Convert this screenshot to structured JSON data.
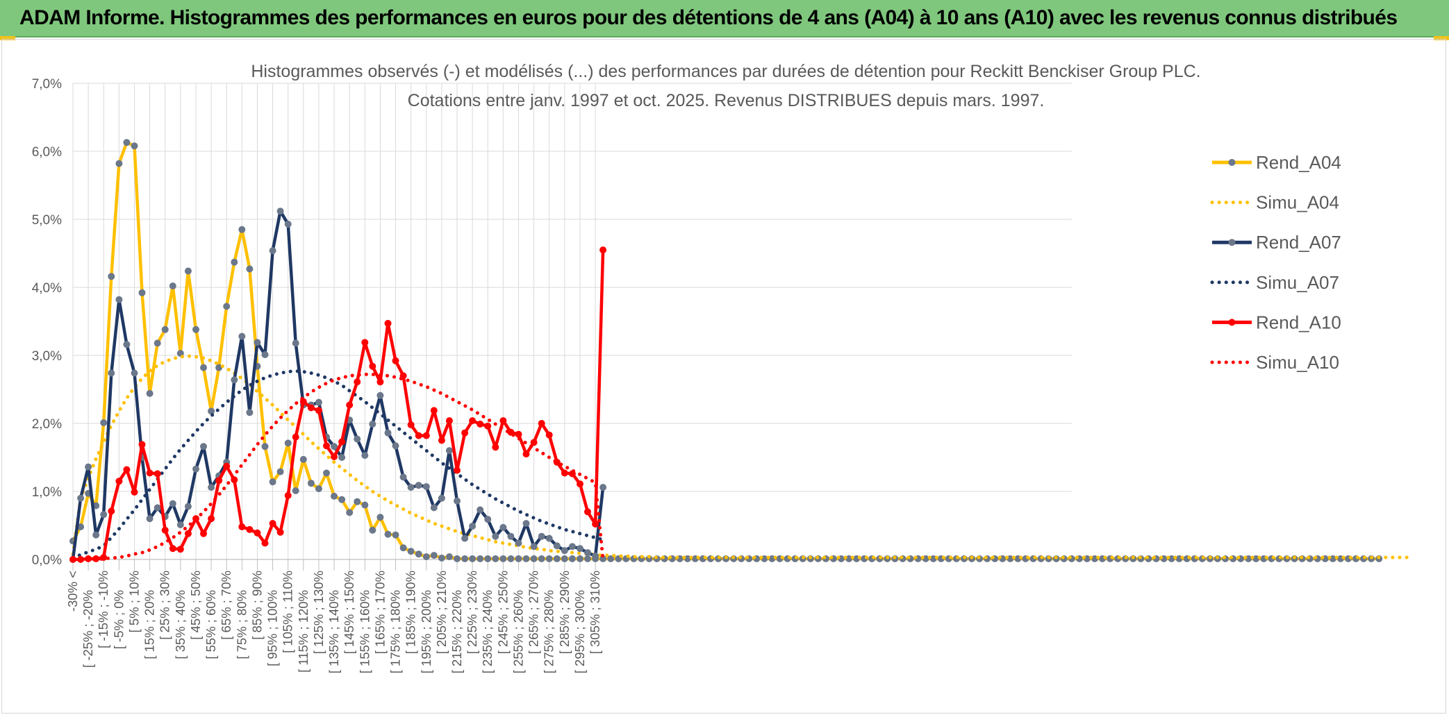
{
  "header": {
    "title": "ADAM Informe. Histogrammes des performances en euros pour des détentions de 4 ans (A04) à 10 ans (A10) avec les revenus connus distribués"
  },
  "colors": {
    "banner": "#7fc77d",
    "accent": "#f2c21b",
    "grid": "#d9d9d9",
    "text": "#595959"
  },
  "chart_data": {
    "type": "line",
    "title": "Histogrammes observés (-) et modélisés (...) des performances par durées de détention pour Reckitt Benckiser Group PLC.",
    "subtitle": "Cotations entre janv. 1997 et oct. 2025. Revenus DISTRIBUES depuis mars. 1997.",
    "xlabel": "",
    "ylabel": "",
    "ylim": [
      0,
      7
    ],
    "y_ticks": [
      "0,0%",
      "1,0%",
      "2,0%",
      "3,0%",
      "4,0%",
      "5,0%",
      "6,0%",
      "7,0%"
    ],
    "x_tick_labels": [
      "-30% <",
      "[ -25% ; -20%",
      "[ -15% ; -10%",
      "[ -5% ; 0%",
      "[ 5% ; 10%",
      "[ 15% ; 20%",
      "[ 25% ; 30%",
      "[ 35% ; 40%",
      "[ 45% ; 50%",
      "[ 55% ; 60%",
      "[ 65% ; 70%",
      "[ 75% ; 80%",
      "[ 85% ; 90%",
      "[ 95% ; 100%",
      "[ 105% ; 110%",
      "[ 115% ; 120%",
      "[ 125% ; 130%",
      "[ 135% ; 140%",
      "[ 145% ; 150%",
      "[ 155% ; 160%",
      "[ 165% ; 170%",
      "[ 175% ; 180%",
      "[ 185% ; 190%",
      "[ 195% ; 200%",
      "[ 205% ; 210%",
      "[ 215% ; 220%",
      "[ 225% ; 230%",
      "[ 235% ; 240%",
      "[ 245% ; 250%",
      "[ 255% ; 260%",
      "[ 265% ; 270%",
      "[ 275% ; 280%",
      "[ 285% ; 290%",
      "[ 295% ; 300%",
      "[ 305% ; 310%"
    ],
    "legend_position": "right",
    "grid": true,
    "series": [
      {
        "name": "Rend_A04",
        "style": "solid",
        "color": "#ffc000",
        "values": [
          0.27,
          0.48,
          0.97,
          0.79,
          2.01,
          4.16,
          5.82,
          6.13,
          6.08,
          3.92,
          2.44,
          3.18,
          3.38,
          4.02,
          3.03,
          4.24,
          3.38,
          2.82,
          2.18,
          2.82,
          3.72,
          4.37,
          4.85,
          4.27,
          2.84,
          1.66,
          1.14,
          1.29,
          1.71,
          1.01,
          1.47,
          1.12,
          1.04,
          1.27,
          0.93,
          0.88,
          0.69,
          0.85,
          0.8,
          0.43,
          0.62,
          0.37,
          0.36,
          0.17,
          0.12,
          0.08,
          0.04,
          0.06,
          0.02,
          0.04,
          0.01,
          0.01,
          0.01,
          0.01,
          0.01,
          0.01,
          0.01,
          0.01,
          0.01,
          0.01,
          0.01,
          0.01,
          0.01,
          0.01,
          0.01,
          0.01,
          0.01,
          0.01,
          0.01,
          0.01,
          0.01,
          0.01,
          0.01,
          0.01,
          0.01,
          0.01,
          0.01,
          0.01,
          0.01,
          0.01,
          0.01,
          0.01,
          0.01,
          0.01,
          0.01,
          0.01,
          0.01,
          0.01,
          0.01,
          0.01,
          0.01,
          0.01,
          0.01,
          0.01,
          0.01,
          0.01,
          0.01,
          0.01,
          0.01,
          0.01,
          0.01,
          0.01,
          0.01,
          0.01,
          0.01,
          0.01,
          0.01,
          0.01,
          0.01,
          0.01,
          0.01,
          0.01,
          0.01,
          0.01,
          0.01,
          0.01,
          0.01,
          0.01,
          0.01,
          0.01,
          0.01,
          0.01,
          0.01,
          0.01,
          0.01,
          0.01,
          0.01,
          0.01,
          0.01,
          0.01,
          0.01,
          0.01,
          0.01,
          0.01,
          0.01,
          0.01,
          0.01,
          0.01,
          0.01,
          0.01,
          0.01,
          0.01,
          0.01,
          0.01,
          0.01,
          0.01,
          0.01,
          0.01,
          0.01,
          0.01,
          0.01,
          0.01,
          0.01,
          0.01,
          0.01,
          0.01,
          0.01,
          0.01,
          0.01,
          0.01,
          0.01,
          0.01,
          0.01,
          0.01,
          0.01,
          0.01,
          0.01,
          0.01,
          0.01,
          0.01,
          0.01
        ]
      },
      {
        "name": "Simu_A04",
        "style": "dotted",
        "color": "#ffc000",
        "values": [
          0.08,
          0.9,
          1.2,
          1.48,
          1.73,
          1.97,
          2.18,
          2.37,
          2.53,
          2.66,
          2.77,
          2.85,
          2.91,
          2.95,
          2.98,
          2.99,
          2.98,
          2.96,
          2.92,
          2.87,
          2.81,
          2.74,
          2.66,
          2.57,
          2.47,
          2.37,
          2.27,
          2.16,
          2.05,
          1.95,
          1.84,
          1.73,
          1.63,
          1.53,
          1.43,
          1.34,
          1.25,
          1.16,
          1.08,
          1.0,
          0.93,
          0.86,
          0.8,
          0.74,
          0.68,
          0.63,
          0.58,
          0.53,
          0.49,
          0.45,
          0.41,
          0.38,
          0.35,
          0.32,
          0.29,
          0.26,
          0.24,
          0.22,
          0.2,
          0.18,
          0.16,
          0.15,
          0.13,
          0.12,
          0.11,
          0.1,
          0.09,
          0.08,
          0.07,
          0.06,
          0.06,
          0.05,
          0.05,
          0.04,
          0.04,
          0.04,
          0.03,
          0.03,
          0.03,
          0.03,
          0.03,
          0.03,
          0.03,
          0.03,
          0.03,
          0.03,
          0.03,
          0.03,
          0.03,
          0.03,
          0.03,
          0.03,
          0.03,
          0.03,
          0.03,
          0.03,
          0.03,
          0.03,
          0.03,
          0.03,
          0.03,
          0.03,
          0.03,
          0.03,
          0.03,
          0.03,
          0.03,
          0.03,
          0.03,
          0.03,
          0.03,
          0.03,
          0.03,
          0.03,
          0.03,
          0.03,
          0.03,
          0.03,
          0.03,
          0.03,
          0.03,
          0.03,
          0.03,
          0.03,
          0.03,
          0.03,
          0.03,
          0.03,
          0.03,
          0.03,
          0.03,
          0.03,
          0.03,
          0.03,
          0.03,
          0.03,
          0.03,
          0.03,
          0.03,
          0.03,
          0.03,
          0.03,
          0.03,
          0.03,
          0.03,
          0.03,
          0.03,
          0.03,
          0.03,
          0.03,
          0.03,
          0.03,
          0.03,
          0.03,
          0.03,
          0.03,
          0.03,
          0.03,
          0.03,
          0.03,
          0.03,
          0.03,
          0.03,
          0.03,
          0.03,
          0.03,
          0.03,
          0.03,
          0.03,
          0.03,
          0.03,
          0.03,
          0.03,
          0.03,
          0.03
        ]
      },
      {
        "name": "Rend_A07",
        "style": "solid",
        "color": "#1f3864",
        "values": [
          0.0,
          0.9,
          1.36,
          0.36,
          0.66,
          2.74,
          3.82,
          3.16,
          2.74,
          1.5,
          0.6,
          0.76,
          0.63,
          0.82,
          0.51,
          0.78,
          1.33,
          1.66,
          1.06,
          1.23,
          1.43,
          2.64,
          3.28,
          2.16,
          3.19,
          3.01,
          4.54,
          5.12,
          4.93,
          3.18,
          2.27,
          2.27,
          2.31,
          1.8,
          1.66,
          1.5,
          2.05,
          1.77,
          1.53,
          1.99,
          2.41,
          1.86,
          1.67,
          1.21,
          1.06,
          1.09,
          1.07,
          0.76,
          0.9,
          1.6,
          0.86,
          0.31,
          0.49,
          0.73,
          0.59,
          0.34,
          0.47,
          0.34,
          0.24,
          0.53,
          0.19,
          0.34,
          0.31,
          0.2,
          0.13,
          0.19,
          0.16,
          0.1,
          0.05,
          1.06
        ]
      },
      {
        "name": "Simu_A07",
        "style": "dotted",
        "color": "#1f3864",
        "values": [
          0.02,
          0.07,
          0.11,
          0.15,
          0.2,
          0.32,
          0.45,
          0.59,
          0.73,
          0.88,
          1.03,
          1.18,
          1.33,
          1.48,
          1.62,
          1.75,
          1.88,
          2.0,
          2.11,
          2.21,
          2.31,
          2.4,
          2.49,
          2.56,
          2.62,
          2.67,
          2.71,
          2.74,
          2.76,
          2.77,
          2.76,
          2.74,
          2.71,
          2.67,
          2.62,
          2.56,
          2.48,
          2.4,
          2.32,
          2.23,
          2.14,
          2.05,
          1.96,
          1.87,
          1.78,
          1.69,
          1.6,
          1.51,
          1.42,
          1.34,
          1.26,
          1.18,
          1.1,
          1.03,
          0.96,
          0.89,
          0.83,
          0.77,
          0.71,
          0.66,
          0.61,
          0.56,
          0.52,
          0.48,
          0.44,
          0.41,
          0.38,
          0.35,
          0.32,
          0.29
        ]
      },
      {
        "name": "Rend_A10",
        "style": "solid",
        "color": "#ff0000",
        "values": [
          0.0,
          0.0,
          0.01,
          0.01,
          0.03,
          0.71,
          1.15,
          1.32,
          0.99,
          1.69,
          1.27,
          1.26,
          0.43,
          0.16,
          0.15,
          0.38,
          0.6,
          0.38,
          0.6,
          1.16,
          1.37,
          1.17,
          0.48,
          0.44,
          0.39,
          0.24,
          0.53,
          0.4,
          0.94,
          1.8,
          2.32,
          2.23,
          2.19,
          1.67,
          1.51,
          1.73,
          2.27,
          2.61,
          3.19,
          2.84,
          2.61,
          3.47,
          2.92,
          2.7,
          1.98,
          1.82,
          1.82,
          2.19,
          1.75,
          2.04,
          1.31,
          1.86,
          2.04,
          1.99,
          1.96,
          1.65,
          2.04,
          1.87,
          1.84,
          1.55,
          1.72,
          2.0,
          1.83,
          1.43,
          1.27,
          1.26,
          1.11,
          0.7,
          0.52,
          4.55
        ]
      },
      {
        "name": "Simu_A10",
        "style": "dotted",
        "color": "#ff0000",
        "values": [
          0.0,
          0.0,
          0.0,
          0.0,
          0.01,
          0.02,
          0.03,
          0.05,
          0.08,
          0.1,
          0.14,
          0.19,
          0.25,
          0.32,
          0.4,
          0.49,
          0.59,
          0.7,
          0.82,
          0.95,
          1.09,
          1.24,
          1.39,
          1.54,
          1.69,
          1.83,
          1.96,
          2.08,
          2.19,
          2.29,
          2.38,
          2.46,
          2.53,
          2.59,
          2.64,
          2.67,
          2.7,
          2.71,
          2.72,
          2.72,
          2.71,
          2.7,
          2.68,
          2.65,
          2.62,
          2.58,
          2.54,
          2.49,
          2.44,
          2.38,
          2.32,
          2.26,
          2.2,
          2.13,
          2.06,
          1.99,
          1.92,
          1.85,
          1.78,
          1.71,
          1.64,
          1.57,
          1.5,
          1.43,
          1.37,
          1.31,
          1.25,
          1.19,
          1.13,
          0.0
        ]
      }
    ]
  }
}
